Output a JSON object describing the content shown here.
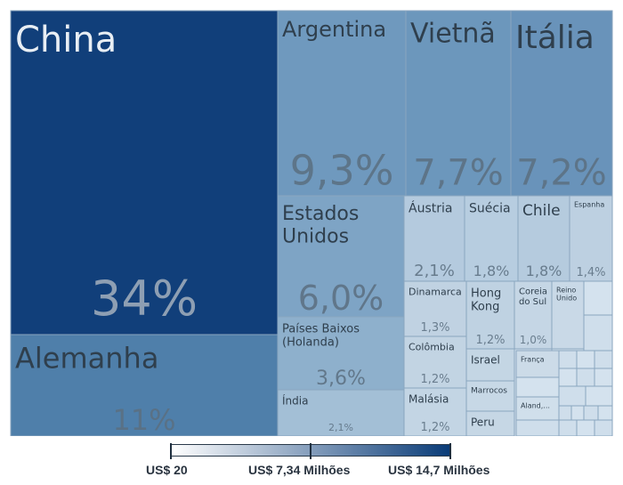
{
  "chart_data": {
    "type": "treemap",
    "tiles": [
      {
        "name": "China",
        "value": 34,
        "label": "34%"
      },
      {
        "name": "Alemanha",
        "value": 11,
        "label": "11%"
      },
      {
        "name": "Argentina",
        "value": 9.3,
        "label": "9,3%"
      },
      {
        "name": "Vietnã",
        "value": 7.7,
        "label": "7,7%"
      },
      {
        "name": "Itália",
        "value": 7.2,
        "label": "7,2%"
      },
      {
        "name": "Estados Unidos",
        "value": 6.0,
        "label": "6,0%"
      },
      {
        "name": "Países Baixos (Holanda)",
        "value": 3.6,
        "label": "3,6%"
      },
      {
        "name": "Índia",
        "value": 2.1,
        "label": "2,1%"
      },
      {
        "name": "Áustria",
        "value": 2.1,
        "label": "2,1%"
      },
      {
        "name": "Suécia",
        "value": 1.8,
        "label": "1,8%"
      },
      {
        "name": "Chile",
        "value": 1.8,
        "label": "1,8%"
      },
      {
        "name": "Espanha",
        "value": 1.4,
        "label": "1,4%"
      },
      {
        "name": "Dinamarca",
        "value": 1.3,
        "label": "1,3%"
      },
      {
        "name": "Colômbia",
        "value": 1.2,
        "label": "1,2%"
      },
      {
        "name": "Malásia",
        "value": 1.2,
        "label": "1,2%"
      },
      {
        "name": "Hong Kong",
        "value": 1.2,
        "label": "1,2%"
      },
      {
        "name": "Coreia do Sul",
        "value": 1.0,
        "label": "1,0%"
      },
      {
        "name": "Reino Unido",
        "value": null,
        "label": ""
      },
      {
        "name": "Israel",
        "value": null,
        "label": ""
      },
      {
        "name": "França",
        "value": null,
        "label": ""
      },
      {
        "name": "Marrocos",
        "value": null,
        "label": ""
      },
      {
        "name": "Peru",
        "value": null,
        "label": ""
      },
      {
        "name": "Aland,...",
        "value": null,
        "label": ""
      }
    ],
    "color_scale": {
      "min_label": "US$ 20",
      "mid_label": "US$ 7,34 Milhões",
      "max_label": "US$ 14,7 Milhões",
      "colors": [
        "#ffffff",
        "#0a3c78"
      ]
    }
  }
}
